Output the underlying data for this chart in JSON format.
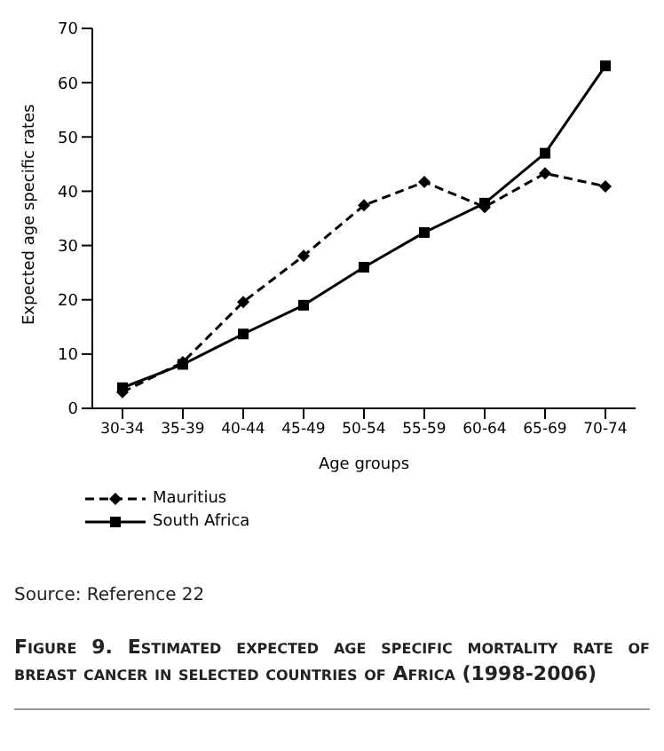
{
  "chart_data": {
    "type": "line",
    "title": "Figure 9. Estimated expected age specific mortality rate of breast cancer in selected countries of  Africa (1998-2006)",
    "xlabel": "Age groups",
    "ylabel": "Expected age specific rates",
    "categories": [
      "30-34",
      "35-39",
      "40-44",
      "45-49",
      "50-54",
      "55-59",
      "60-64",
      "65-69",
      "70-74"
    ],
    "series": [
      {
        "name": "Mauritius",
        "color": "#000000",
        "line_style": "dashed",
        "marker": "diamond",
        "values": [
          3,
          8.5,
          19.6,
          28.1,
          37.4,
          41.7,
          37.1,
          43.3,
          40.9
        ]
      },
      {
        "name": "South Africa",
        "color": "#000000",
        "line_style": "solid",
        "marker": "square",
        "values": [
          3.8,
          8.1,
          13.7,
          19,
          26,
          32.4,
          37.8,
          47,
          63.1
        ]
      }
    ],
    "ylim": [
      0,
      70
    ],
    "yticks": [
      0,
      10,
      20,
      30,
      40,
      50,
      60,
      70
    ],
    "grid": false,
    "legend": "bottom left",
    "annotations": [
      "Source: Reference 22"
    ]
  }
}
